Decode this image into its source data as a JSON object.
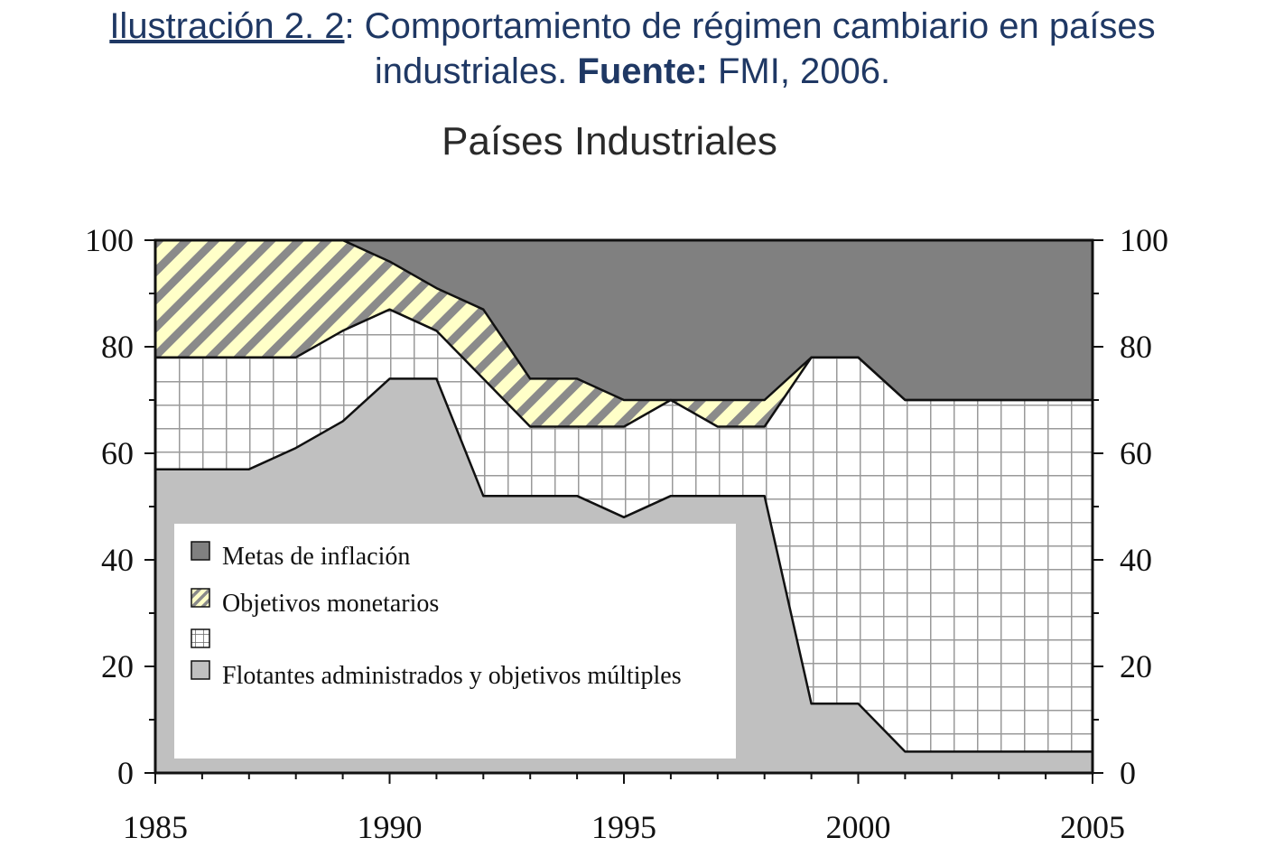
{
  "caption": {
    "part1": "Ilustración 2. 2",
    "part2": ": Comportamiento de régimen cambiario en países",
    "part3": "industriales. ",
    "bold": "Fuente:",
    "part4": " FMI, 2006."
  },
  "colors": {
    "caption": "#1f3864",
    "inflation": "#808080",
    "monetary_bg": "#ffffc8",
    "monetary_stripe": "#8a8a8a",
    "grid_area": "#ffffff",
    "grid_lines": "#aaaaaa",
    "managed": "#c0c0c0"
  },
  "chart_data": {
    "type": "area",
    "stacked": true,
    "title": "Países Industriales",
    "x": [
      1985,
      1986,
      1987,
      1988,
      1989,
      1990,
      1991,
      1992,
      1993,
      1994,
      1995,
      1996,
      1997,
      1998,
      1999,
      2000,
      2001,
      2002,
      2003,
      2004,
      2005
    ],
    "xlim": [
      1985,
      2005
    ],
    "ylim": [
      0,
      100
    ],
    "x_ticks": [
      "1985",
      "1990",
      "1995",
      "2000",
      "2005"
    ],
    "y_ticks": [
      "0",
      "20",
      "40",
      "60",
      "80",
      "100"
    ],
    "y_axis_both_sides": true,
    "boundaries": {
      "managed_top": [
        57,
        57,
        57,
        61,
        66,
        74,
        74,
        52,
        52,
        52,
        48,
        52,
        52,
        52,
        13,
        13,
        4,
        4,
        4,
        4,
        4
      ],
      "grid_top": [
        78,
        78,
        78,
        78,
        83,
        87,
        83,
        74,
        65,
        65,
        65,
        70,
        65,
        65,
        78,
        78,
        70,
        70,
        70,
        70,
        70
      ],
      "monetary_top": [
        100,
        100,
        100,
        100,
        100,
        96,
        91,
        87,
        74,
        74,
        70,
        70,
        70,
        70,
        78,
        78,
        70,
        70,
        70,
        70,
        70
      ]
    },
    "series": [
      {
        "name": "Flotantes administrados y objetivos múltiples",
        "key": "managed",
        "pattern": "solid-light-gray"
      },
      {
        "key": "grid",
        "pattern": "grid"
      },
      {
        "name": "Objetivos monetarios",
        "key": "monetary",
        "pattern": "yellow-diagonal-stripes"
      },
      {
        "name": "Metas de inflación",
        "key": "inflation",
        "pattern": "solid-dark-gray"
      }
    ],
    "legend": {
      "placement": "lower-left",
      "entries": [
        {
          "label": "Metas de inflación",
          "pattern": "inflation"
        },
        {
          "label": "Objetivos monetarios",
          "pattern": "monetary"
        },
        {
          "label": "",
          "pattern": "grid"
        },
        {
          "label": "Flotantes administrados y objetivos múltiples",
          "pattern": "managed"
        }
      ]
    }
  }
}
